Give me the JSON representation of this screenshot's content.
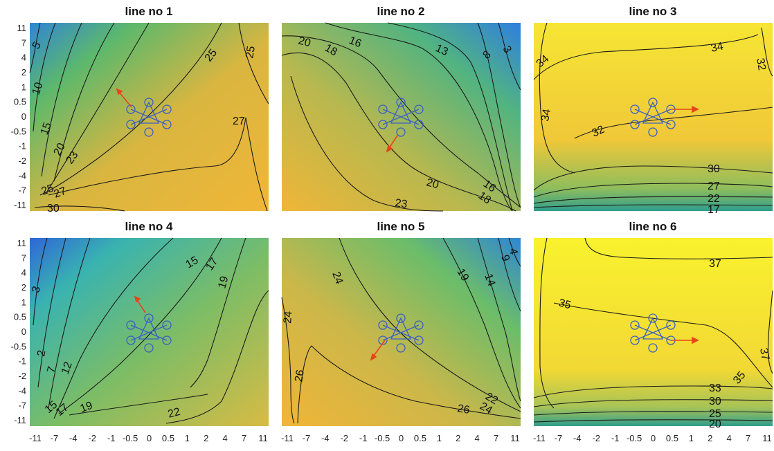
{
  "chart_data": [
    {
      "type": "contour",
      "title": "line no 1",
      "x_ticks": [
        "-11",
        "-7",
        "-4",
        "-2",
        "-1",
        "-0.5",
        "0",
        "0.5",
        "1",
        "2",
        "4",
        "7",
        "11"
      ],
      "y_ticks": [
        "11",
        "7",
        "4",
        "2",
        "1",
        "0.5",
        "0",
        "-0.5",
        "-1",
        "-2",
        "-4",
        "-7",
        "-11"
      ],
      "contour_levels": [
        "5",
        "10",
        "15",
        "20",
        "23",
        "25",
        "27",
        "30",
        "25",
        "25",
        "27"
      ],
      "colors": [
        "#2f86d4",
        "#5db86c",
        "#d9b640",
        "#f0b637"
      ],
      "arrow": "up-left"
    },
    {
      "type": "contour",
      "title": "line no 2",
      "x_ticks": [
        "-11",
        "-7",
        "-4",
        "-2",
        "-1",
        "-0.5",
        "0",
        "0.5",
        "1",
        "2",
        "4",
        "7",
        "11"
      ],
      "y_ticks": [
        "11",
        "7",
        "4",
        "2",
        "1",
        "0.5",
        "0",
        "-0.5",
        "-1",
        "-2",
        "-4",
        "-7",
        "-11"
      ],
      "contour_levels": [
        "20",
        "18",
        "16",
        "13",
        "8",
        "3",
        "20",
        "16",
        "18",
        "23"
      ],
      "colors": [
        "#2e7fe0",
        "#52b480",
        "#b7b84f",
        "#f0b637"
      ],
      "arrow": "down-left"
    },
    {
      "type": "contour",
      "title": "line no 3",
      "x_ticks": [
        "-11",
        "-7",
        "-4",
        "-2",
        "-1",
        "-0.5",
        "0",
        "0.5",
        "1",
        "2",
        "4",
        "7",
        "11"
      ],
      "y_ticks": [
        "11",
        "7",
        "4",
        "2",
        "1",
        "0.5",
        "0",
        "-0.5",
        "-1",
        "-2",
        "-4",
        "-7",
        "-11"
      ],
      "contour_levels": [
        "34",
        "34",
        "32",
        "34",
        "32",
        "30",
        "27",
        "22",
        "17"
      ],
      "colors": [
        "#f6e634",
        "#f0c838",
        "#8fbd5c",
        "#2f9e8c"
      ],
      "arrow": "right"
    },
    {
      "type": "contour",
      "title": "line no 4",
      "x_ticks": [
        "-11",
        "-7",
        "-4",
        "-2",
        "-1",
        "-0.5",
        "0",
        "0.5",
        "1",
        "2",
        "4",
        "7",
        "11"
      ],
      "y_ticks": [
        "11",
        "7",
        "4",
        "2",
        "1",
        "0.5",
        "0",
        "-0.5",
        "-1",
        "-2",
        "-4",
        "-7",
        "-11"
      ],
      "contour_levels": [
        "15",
        "17",
        "19",
        "3",
        "2",
        "7",
        "12",
        "15",
        "17",
        "19",
        "22"
      ],
      "colors": [
        "#2f66d9",
        "#39b3b0",
        "#7cbd66",
        "#d8bb44"
      ],
      "arrow": "up-left"
    },
    {
      "type": "contour",
      "title": "line no 5",
      "x_ticks": [
        "-11",
        "-7",
        "-4",
        "-2",
        "-1",
        "-0.5",
        "0",
        "0.5",
        "1",
        "2",
        "4",
        "7",
        "11"
      ],
      "y_ticks": [
        "11",
        "7",
        "4",
        "2",
        "1",
        "0.5",
        "0",
        "-0.5",
        "-1",
        "-2",
        "-4",
        "-7",
        "-11"
      ],
      "contour_levels": [
        "24",
        "19",
        "14",
        "9",
        "4",
        "24",
        "26",
        "22",
        "24",
        "26"
      ],
      "colors": [
        "#2f86d4",
        "#6bbd6a",
        "#cbb74a",
        "#f0b637"
      ],
      "arrow": "down-left"
    },
    {
      "type": "contour",
      "title": "line no 6",
      "x_ticks": [
        "-11",
        "-7",
        "-4",
        "-2",
        "-1",
        "-0.5",
        "0",
        "0.5",
        "1",
        "2",
        "4",
        "7",
        "11"
      ],
      "y_ticks": [
        "11",
        "7",
        "4",
        "2",
        "1",
        "0.5",
        "0",
        "-0.5",
        "-1",
        "-2",
        "-4",
        "-7",
        "-11"
      ],
      "contour_levels": [
        "37",
        "35",
        "37",
        "35",
        "33",
        "30",
        "25",
        "20"
      ],
      "colors": [
        "#f9f22e",
        "#f2d834",
        "#a7c357",
        "#2f9e8c"
      ],
      "arrow": "right"
    }
  ]
}
